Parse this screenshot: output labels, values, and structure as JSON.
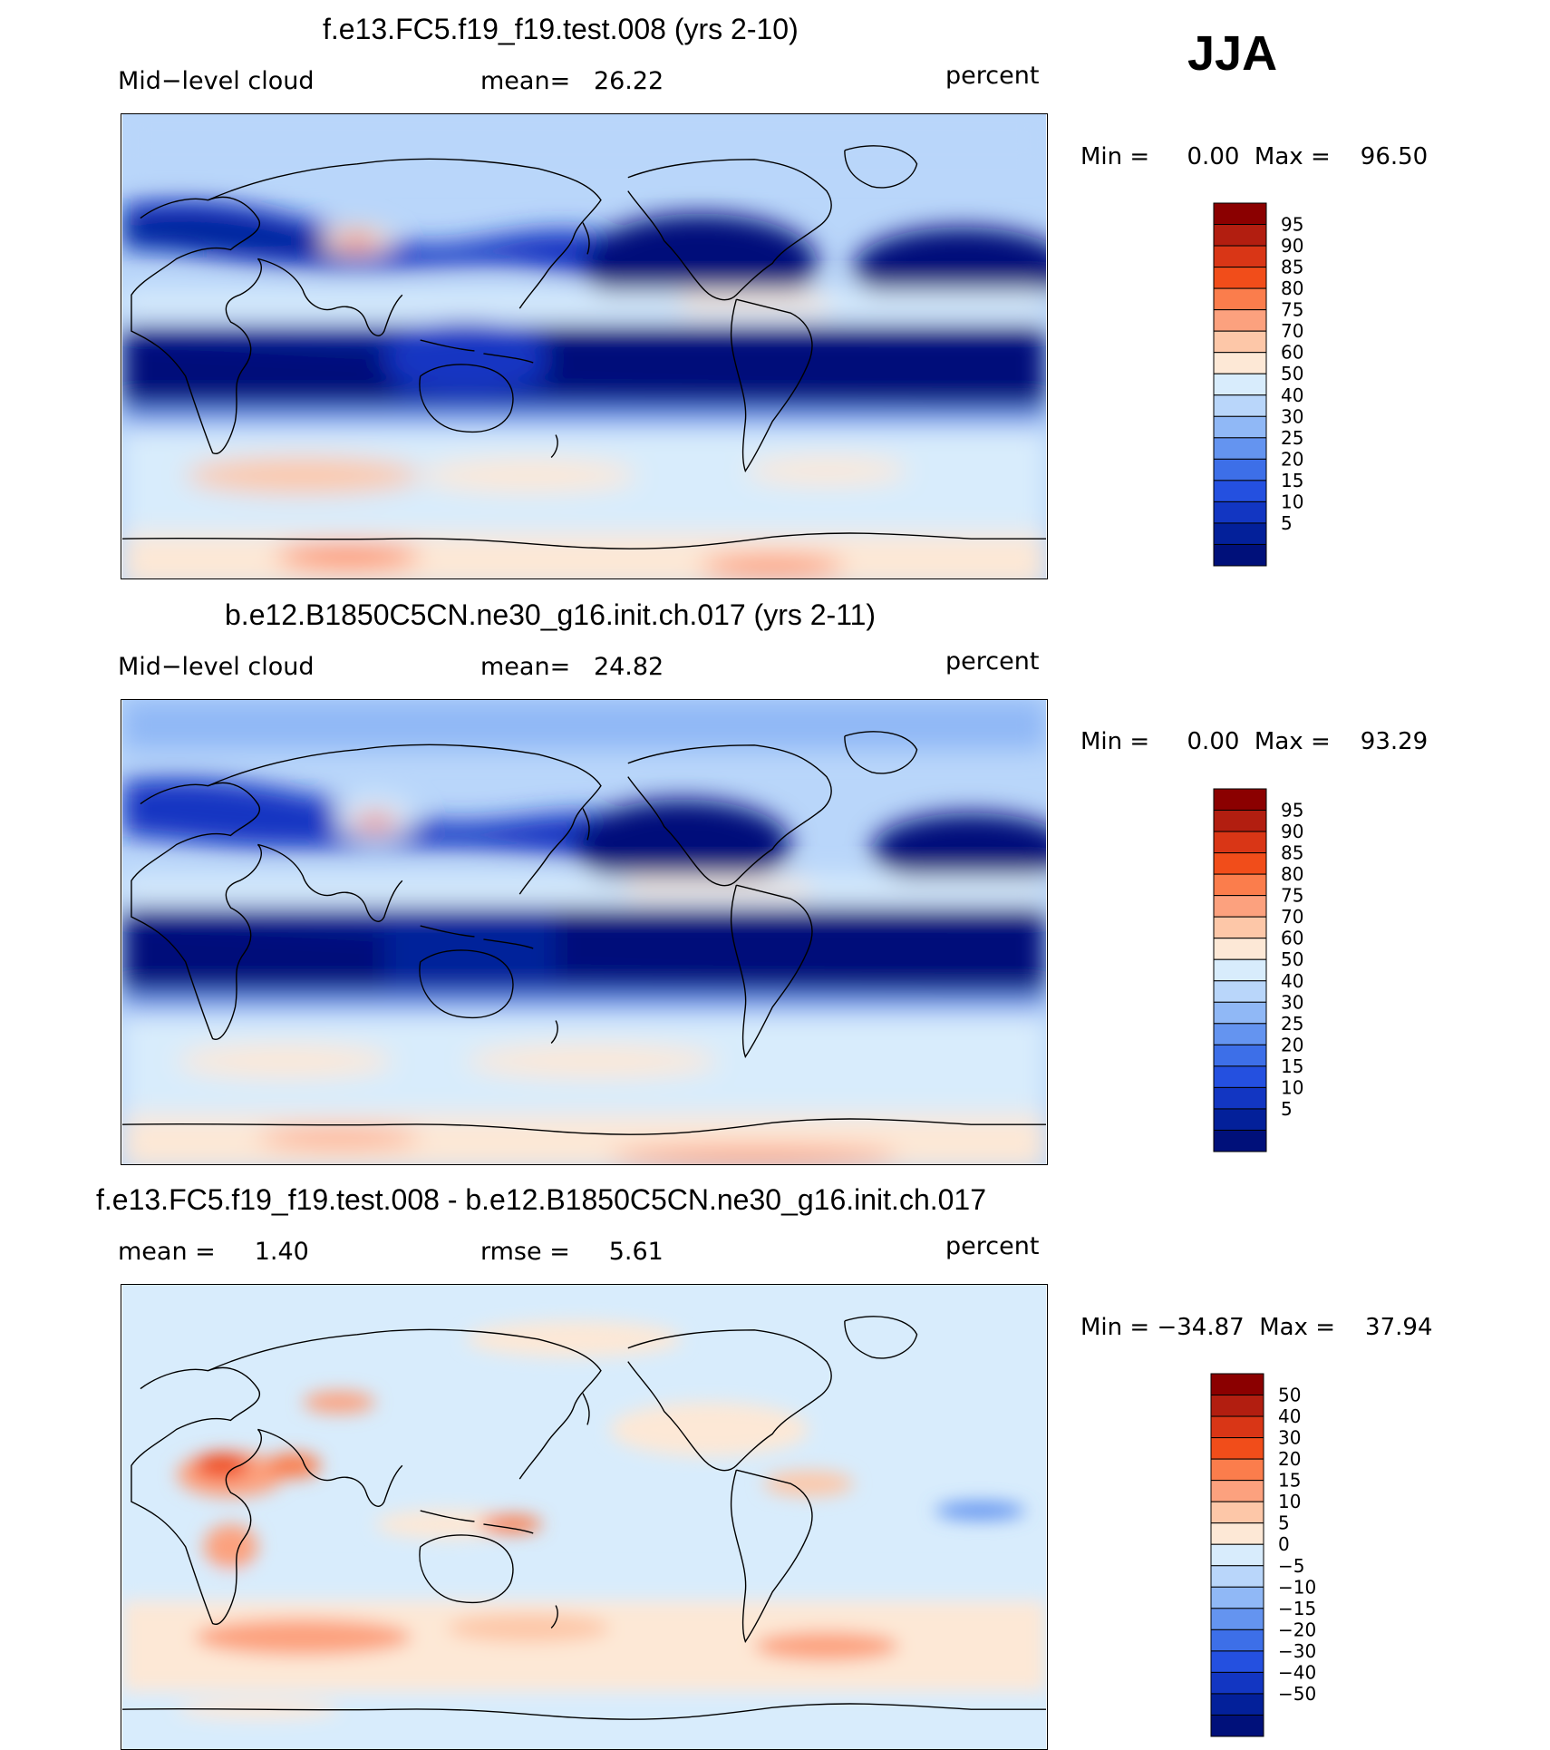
{
  "season": "JJA",
  "panels": [
    {
      "title": "f.e13.FC5.f19_f19.test.008 (yrs 2-10)",
      "left_label": "Mid−level cloud",
      "center_label": "mean=   26.22",
      "right_label": "percent",
      "minmax": "Min =     0.00  Max =    96.50",
      "colorbar": {
        "colors": [
          "#8b0000",
          "#b21e10",
          "#d93616",
          "#f14d1a",
          "#fb7d4c",
          "#fca17e",
          "#fdc7a8",
          "#fde8d6",
          "#d8ecfc",
          "#b9d6fa",
          "#90b8f6",
          "#6494f0",
          "#3d6fe8",
          "#2450e0",
          "#1236c2",
          "#03209a",
          "#00107a"
        ],
        "labels": [
          "95",
          "90",
          "85",
          "80",
          "75",
          "70",
          "60",
          "50",
          "40",
          "30",
          "25",
          "20",
          "15",
          "10",
          "5"
        ]
      }
    },
    {
      "title": "b.e12.B1850C5CN.ne30_g16.init.ch.017 (yrs 2-11)",
      "left_label": "Mid−level cloud",
      "center_label": "mean=   24.82",
      "right_label": "percent",
      "minmax": "Min =     0.00  Max =    93.29",
      "colorbar": {
        "colors": [
          "#8b0000",
          "#b21e10",
          "#d93616",
          "#f14d1a",
          "#fb7d4c",
          "#fca17e",
          "#fdc7a8",
          "#fde8d6",
          "#d8ecfc",
          "#b9d6fa",
          "#90b8f6",
          "#6494f0",
          "#3d6fe8",
          "#2450e0",
          "#1236c2",
          "#03209a",
          "#00107a"
        ],
        "labels": [
          "95",
          "90",
          "85",
          "80",
          "75",
          "70",
          "60",
          "50",
          "40",
          "30",
          "25",
          "20",
          "15",
          "10",
          "5"
        ]
      }
    },
    {
      "title": "f.e13.FC5.f19_f19.test.008 - b.e12.B1850C5CN.ne30_g16.init.ch.017",
      "left_label": "mean =     1.40",
      "center_label": "rmse =     5.61",
      "right_label": "percent",
      "minmax": "Min = −34.87  Max =    37.94",
      "colorbar": {
        "colors": [
          "#8b0000",
          "#b21e10",
          "#d93616",
          "#f14d1a",
          "#fb7d4c",
          "#fca17e",
          "#fdc7a8",
          "#fde8d6",
          "#d8ecfc",
          "#b9d6fa",
          "#90b8f6",
          "#6494f0",
          "#3d6fe8",
          "#2450e0",
          "#1236c2",
          "#03209a",
          "#00107a"
        ],
        "labels": [
          "50",
          "40",
          "30",
          "20",
          "15",
          "10",
          "5",
          "0",
          "−5",
          "−10",
          "−15",
          "−20",
          "−30",
          "−40",
          "−50"
        ]
      }
    }
  ],
  "chart_data": [
    {
      "type": "heatmap",
      "title": "f.e13.FC5.f19_f19.test.008 (yrs 2-10)",
      "variable": "Mid−level cloud",
      "units": "percent",
      "mean": 26.22,
      "min": 0.0,
      "max": 96.5,
      "contour_levels": [
        5,
        10,
        15,
        20,
        25,
        30,
        40,
        50,
        60,
        70,
        75,
        80,
        85,
        90,
        95
      ]
    },
    {
      "type": "heatmap",
      "title": "b.e12.B1850C5CN.ne30_g16.init.ch.017 (yrs 2-11)",
      "variable": "Mid−level cloud",
      "units": "percent",
      "mean": 24.82,
      "min": 0.0,
      "max": 93.29,
      "contour_levels": [
        5,
        10,
        15,
        20,
        25,
        30,
        40,
        50,
        60,
        70,
        75,
        80,
        85,
        90,
        95
      ]
    },
    {
      "type": "heatmap",
      "title": "f.e13.FC5.f19_f19.test.008 - b.e12.B1850C5CN.ne30_g16.init.ch.017",
      "units": "percent",
      "mean": 1.4,
      "rmse": 5.61,
      "min": -34.87,
      "max": 37.94,
      "contour_levels": [
        -50,
        -40,
        -30,
        -20,
        -15,
        -10,
        -5,
        0,
        5,
        10,
        15,
        20,
        30,
        40,
        50
      ]
    }
  ]
}
